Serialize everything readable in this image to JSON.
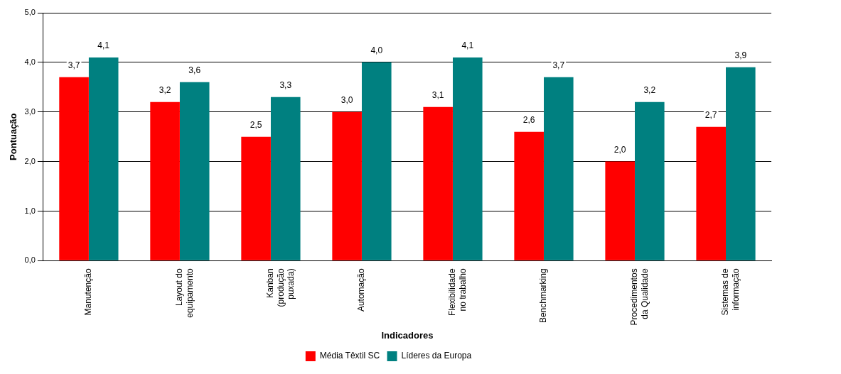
{
  "chart_data": {
    "type": "bar",
    "xlabel": "Indicadores",
    "ylabel": "Pontuação",
    "categories": [
      "Manutenção",
      "Layout do equipamento",
      "Kanban (produção puxada)",
      "Automação",
      "Flexibilidade no trabalho",
      "Benchmarking",
      "Procedimentos da Qualidade",
      "Sistemas de informação"
    ],
    "series": [
      {
        "name": "Média Têxtil SC",
        "color": "#ff0000",
        "values": [
          3.7,
          3.2,
          2.5,
          3.0,
          3.1,
          2.6,
          2.0,
          2.7
        ],
        "value_labels": [
          "3,7",
          "3,2",
          "2,5",
          "3,0",
          "3,1",
          "2,6",
          "2,0",
          "2,7"
        ]
      },
      {
        "name": "Líderes da Europa",
        "color": "#008080",
        "values": [
          4.1,
          3.6,
          3.3,
          4.0,
          4.1,
          3.7,
          3.2,
          3.9
        ],
        "value_labels": [
          "4,1",
          "3,6",
          "3,3",
          "4,0",
          "4,1",
          "3,7",
          "3,2",
          "3,9"
        ]
      }
    ],
    "ylim": [
      0,
      5
    ],
    "yticks": [
      {
        "value": 0,
        "label": "0,0"
      },
      {
        "value": 1,
        "label": "1,0"
      },
      {
        "value": 2,
        "label": "2,0"
      },
      {
        "value": 3,
        "label": "3,0"
      },
      {
        "value": 4,
        "label": "4,0"
      },
      {
        "value": 5,
        "label": "5,0"
      }
    ],
    "grid": "y",
    "legend": "bottom"
  }
}
